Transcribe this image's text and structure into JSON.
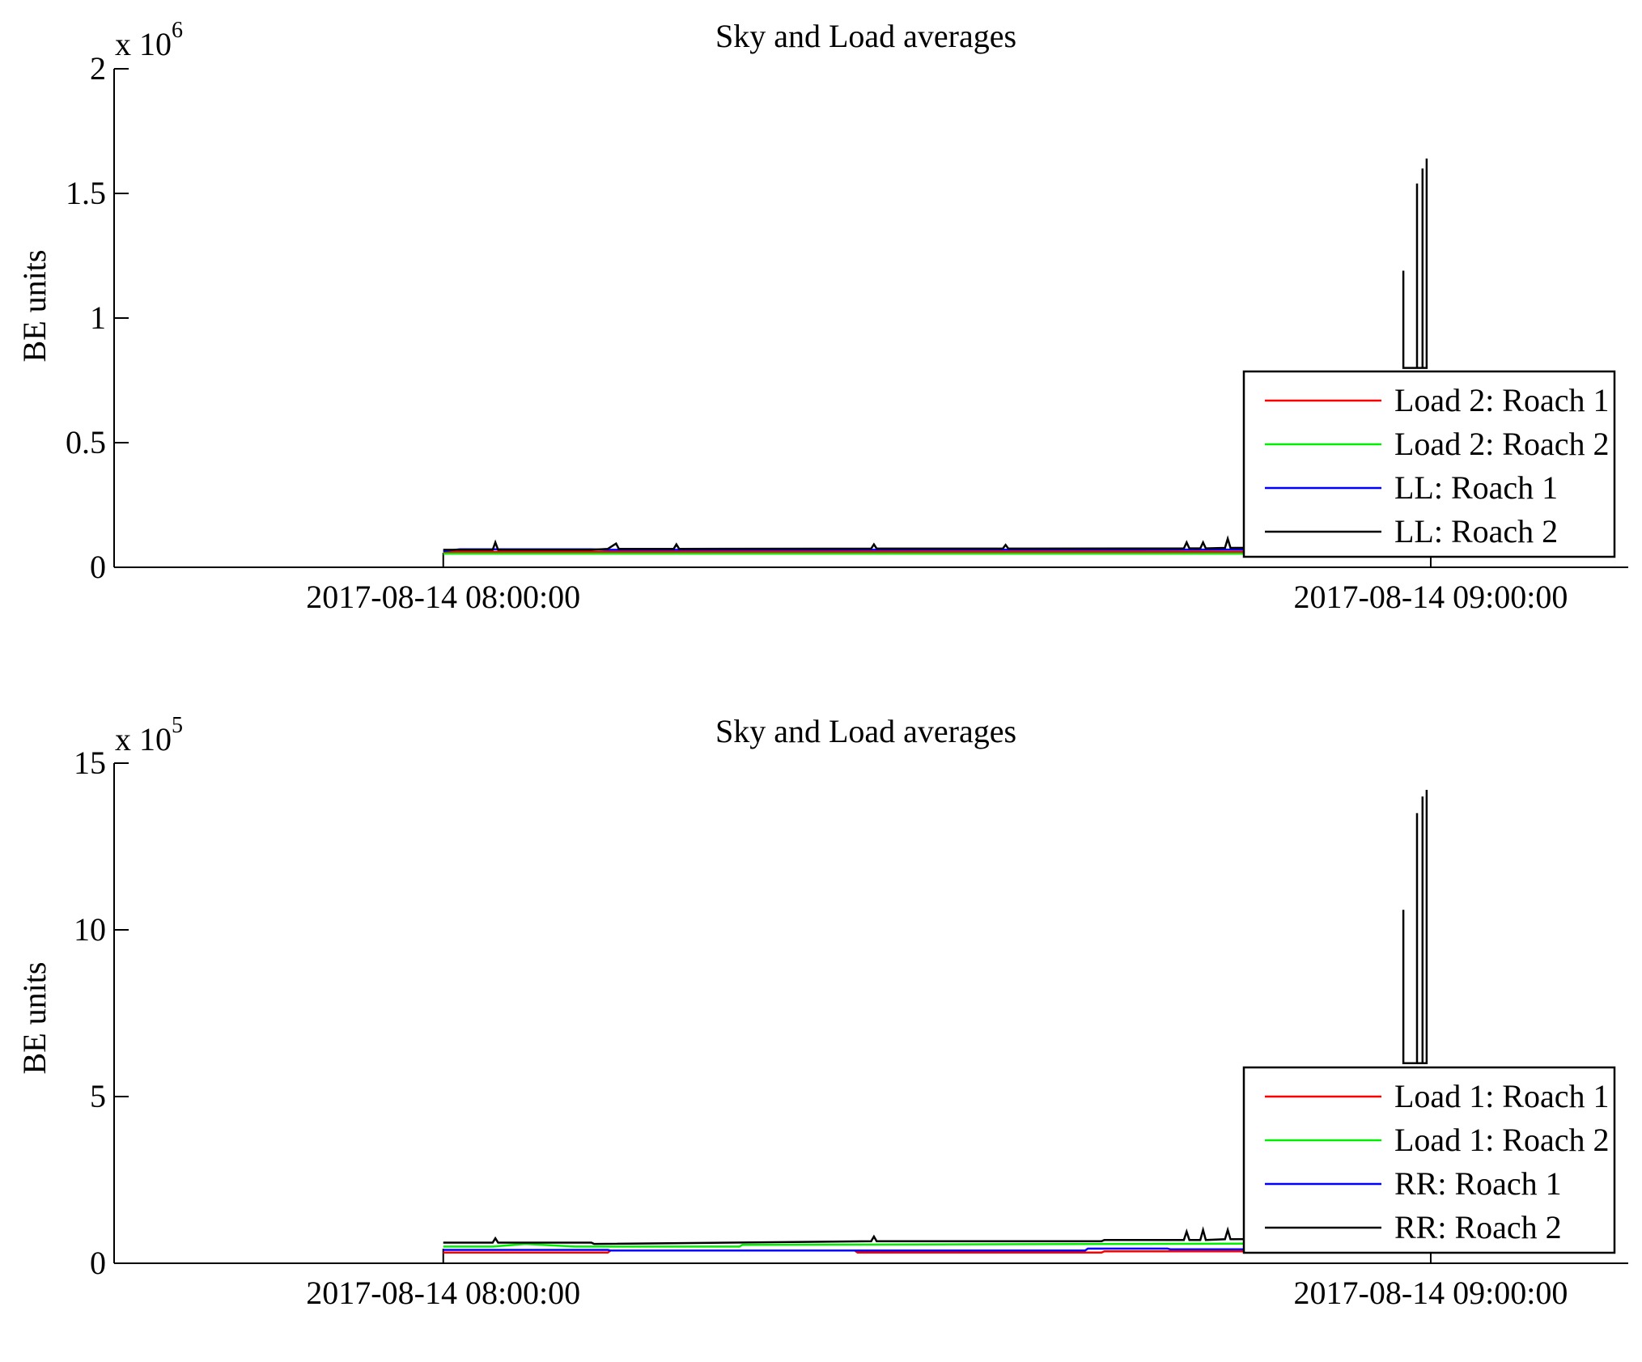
{
  "chart_data": [
    {
      "type": "line",
      "title": "Sky and Load averages",
      "xlabel": "",
      "ylabel": "BE units",
      "y_exponent_label": "x 10",
      "y_exponent_power": "6",
      "y_scale": 1000000,
      "ylim": [
        0,
        2000000
      ],
      "xlim": [
        "2017-08-14 07:40:00",
        "2017-08-14 09:12:00"
      ],
      "x_ticks": [
        "2017-08-14 08:00:00",
        "2017-08-14 09:00:00"
      ],
      "y_ticks": [
        {
          "value": 0,
          "label": "0"
        },
        {
          "value": 500000,
          "label": "0.5"
        },
        {
          "value": 1000000,
          "label": "1"
        },
        {
          "value": 1500000,
          "label": "1.5"
        },
        {
          "value": 2000000,
          "label": "2"
        }
      ],
      "grid": false,
      "legend_position": "bottom-right",
      "series": [
        {
          "name": "Load 2: Roach 1",
          "color": "#ff0000",
          "x": [
            "2017-08-14 08:00:00",
            "2017-08-14 08:58:00"
          ],
          "y": [
            62000,
            62000
          ]
        },
        {
          "name": "Load 2: Roach 2",
          "color": "#00ee00",
          "x": [
            "2017-08-14 08:00:00",
            "2017-08-14 08:58:00"
          ],
          "y": [
            55000,
            55000
          ]
        },
        {
          "name": "LL: Roach 1",
          "color": "#0000ff",
          "x": [
            "2017-08-14 08:00:00",
            "2017-08-14 08:01:00",
            "2017-08-14 08:09:00",
            "2017-08-14 08:10:00",
            "2017-08-14 08:58:00"
          ],
          "y": [
            65000,
            72000,
            72000,
            70000,
            71000
          ]
        },
        {
          "name": "LL: Roach 2",
          "color": "#000000",
          "x": [
            "2017-08-14 08:00:00",
            "2017-08-14 08:03:00",
            "2017-08-14 08:03:10",
            "2017-08-14 08:03:20",
            "2017-08-14 08:09:00",
            "2017-08-14 08:10:00",
            "2017-08-14 08:10:30",
            "2017-08-14 08:10:40",
            "2017-08-14 08:14:00",
            "2017-08-14 08:14:10",
            "2017-08-14 08:14:20",
            "2017-08-14 08:26:00",
            "2017-08-14 08:26:10",
            "2017-08-14 08:26:20",
            "2017-08-14 08:34:00",
            "2017-08-14 08:34:10",
            "2017-08-14 08:34:20",
            "2017-08-14 08:45:00",
            "2017-08-14 08:45:10",
            "2017-08-14 08:45:20",
            "2017-08-14 08:46:00",
            "2017-08-14 08:46:10",
            "2017-08-14 08:46:20",
            "2017-08-14 08:47:30",
            "2017-08-14 08:47:40",
            "2017-08-14 08:47:50",
            "2017-08-14 08:58:00"
          ],
          "y": [
            70000,
            70000,
            100000,
            70000,
            70000,
            74000,
            95000,
            74000,
            74000,
            92000,
            74000,
            75000,
            92000,
            75000,
            75000,
            90000,
            75000,
            76000,
            100000,
            76000,
            76000,
            100000,
            76000,
            78000,
            115000,
            78000,
            80000
          ]
        },
        {
          "name": "LL: Roach 2 (spikes)",
          "color": "#000000",
          "x": [
            "2017-08-14 08:58:20",
            "2017-08-14 08:58:20",
            "2017-08-14 08:58:20",
            "2017-08-14 08:59:10",
            "2017-08-14 08:59:10",
            "2017-08-14 08:59:10",
            "2017-08-14 08:59:30",
            "2017-08-14 08:59:30",
            "2017-08-14 08:59:30",
            "2017-08-14 08:59:45",
            "2017-08-14 08:59:45",
            "2017-08-14 08:59:45"
          ],
          "y": [
            800000,
            1190000,
            800000,
            800000,
            1540000,
            800000,
            800000,
            1600000,
            800000,
            800000,
            1640000,
            800000
          ]
        }
      ],
      "legend": [
        {
          "label": "Load 2: Roach 1",
          "color": "#ff0000"
        },
        {
          "label": "Load 2: Roach 2",
          "color": "#00ee00"
        },
        {
          "label": "LL: Roach 1",
          "color": "#0000ff"
        },
        {
          "label": "LL: Roach 2",
          "color": "#000000"
        }
      ]
    },
    {
      "type": "line",
      "title": "Sky and Load averages",
      "xlabel": "",
      "ylabel": "BE units",
      "y_exponent_label": "x 10",
      "y_exponent_power": "5",
      "y_scale": 100000,
      "ylim": [
        0,
        1500000
      ],
      "xlim": [
        "2017-08-14 07:40:00",
        "2017-08-14 09:12:00"
      ],
      "x_ticks": [
        "2017-08-14 08:00:00",
        "2017-08-14 09:00:00"
      ],
      "y_ticks": [
        {
          "value": 0,
          "label": "0"
        },
        {
          "value": 500000,
          "label": "5"
        },
        {
          "value": 1000000,
          "label": "10"
        },
        {
          "value": 1500000,
          "label": "15"
        }
      ],
      "grid": false,
      "legend_position": "bottom-right",
      "series": [
        {
          "name": "Load 1: Roach 1",
          "color": "#ff0000",
          "x": [
            "2017-08-14 08:00:00",
            "2017-08-14 08:10:00",
            "2017-08-14 08:10:10",
            "2017-08-14 08:25:00",
            "2017-08-14 08:25:10",
            "2017-08-14 08:40:00",
            "2017-08-14 08:40:10",
            "2017-08-14 08:58:00"
          ],
          "y": [
            32000,
            32000,
            38000,
            38000,
            32000,
            32000,
            36000,
            36000
          ]
        },
        {
          "name": "Load 1: Roach 2",
          "color": "#00ee00",
          "x": [
            "2017-08-14 08:00:00",
            "2017-08-14 08:03:00",
            "2017-08-14 08:05:00",
            "2017-08-14 08:08:00",
            "2017-08-14 08:18:00",
            "2017-08-14 08:18:10",
            "2017-08-14 08:58:00"
          ],
          "y": [
            50000,
            50000,
            58000,
            50000,
            50000,
            55000,
            60000
          ]
        },
        {
          "name": "RR: Roach 1",
          "color": "#0000ff",
          "x": [
            "2017-08-14 08:00:00",
            "2017-08-14 08:10:00",
            "2017-08-14 08:10:10",
            "2017-08-14 08:39:00",
            "2017-08-14 08:39:10",
            "2017-08-14 08:44:00",
            "2017-08-14 08:44:10",
            "2017-08-14 08:58:00"
          ],
          "y": [
            40000,
            40000,
            38000,
            38000,
            44000,
            44000,
            42000,
            42000
          ]
        },
        {
          "name": "RR: Roach 2",
          "color": "#000000",
          "x": [
            "2017-08-14 08:00:00",
            "2017-08-14 08:03:00",
            "2017-08-14 08:03:10",
            "2017-08-14 08:03:20",
            "2017-08-14 08:09:00",
            "2017-08-14 08:09:10",
            "2017-08-14 08:26:00",
            "2017-08-14 08:26:10",
            "2017-08-14 08:26:20",
            "2017-08-14 08:40:00",
            "2017-08-14 08:40:10",
            "2017-08-14 08:45:00",
            "2017-08-14 08:45:10",
            "2017-08-14 08:45:20",
            "2017-08-14 08:46:00",
            "2017-08-14 08:46:10",
            "2017-08-14 08:46:20",
            "2017-08-14 08:47:30",
            "2017-08-14 08:47:40",
            "2017-08-14 08:47:50",
            "2017-08-14 08:58:00"
          ],
          "y": [
            62000,
            62000,
            75000,
            62000,
            62000,
            58000,
            66000,
            80000,
            66000,
            66000,
            70000,
            70000,
            95000,
            70000,
            70000,
            100000,
            70000,
            72000,
            100000,
            72000,
            75000
          ]
        },
        {
          "name": "RR: Roach 2 (spikes)",
          "color": "#000000",
          "x": [
            "2017-08-14 08:58:20",
            "2017-08-14 08:58:20",
            "2017-08-14 08:58:20",
            "2017-08-14 08:59:10",
            "2017-08-14 08:59:10",
            "2017-08-14 08:59:10",
            "2017-08-14 08:59:30",
            "2017-08-14 08:59:30",
            "2017-08-14 08:59:30",
            "2017-08-14 08:59:45",
            "2017-08-14 08:59:45",
            "2017-08-14 08:59:45"
          ],
          "y": [
            600000,
            1060000,
            600000,
            600000,
            1350000,
            600000,
            600000,
            1400000,
            600000,
            600000,
            1420000,
            600000
          ]
        }
      ],
      "legend": [
        {
          "label": "Load 1: Roach 1",
          "color": "#ff0000"
        },
        {
          "label": "Load 1: Roach 2",
          "color": "#00ee00"
        },
        {
          "label": "RR: Roach 1",
          "color": "#0000ff"
        },
        {
          "label": "RR: Roach 2",
          "color": "#000000"
        }
      ]
    }
  ]
}
